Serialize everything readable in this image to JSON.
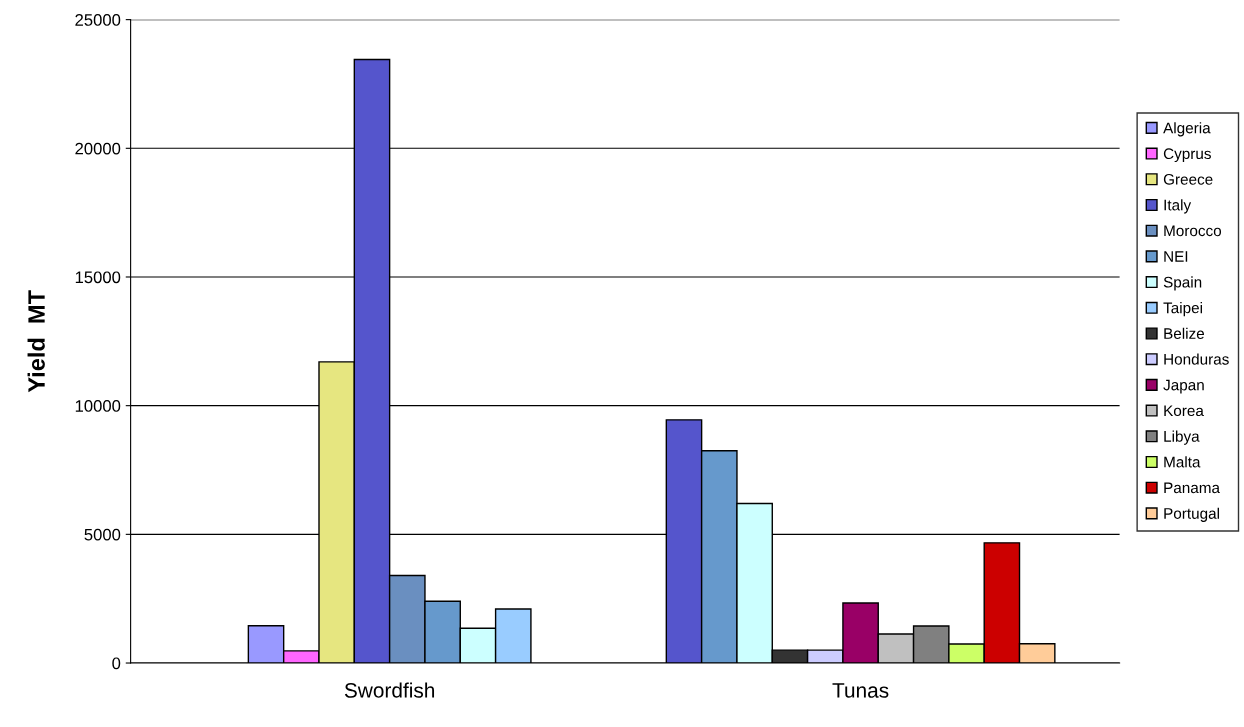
{
  "chart_data": {
    "type": "bar",
    "ylabel": "Yield  MT",
    "categories": [
      "Swordfish",
      "Tunas"
    ],
    "ylim": [
      0,
      25000
    ],
    "yticks": [
      0,
      5000,
      10000,
      15000,
      20000,
      25000
    ],
    "grid": "y",
    "legend": "right",
    "series": [
      {
        "name": "Algeria",
        "color": "#9999ff",
        "values": [
          1450,
          null
        ]
      },
      {
        "name": "Cyprus",
        "color": "#ff66ff",
        "values": [
          470,
          null
        ]
      },
      {
        "name": "Greece",
        "color": "#e6e680",
        "values": [
          11700,
          null
        ]
      },
      {
        "name": "Italy",
        "color": "#5555cc",
        "values": [
          23450,
          9450
        ]
      },
      {
        "name": "Morocco",
        "color": "#6a8fc0",
        "values": [
          3400,
          null
        ]
      },
      {
        "name": "NEI",
        "color": "#6699cc",
        "values": [
          2400,
          8250
        ]
      },
      {
        "name": "Spain",
        "color": "#ccffff",
        "values": [
          1350,
          6200
        ]
      },
      {
        "name": "Taipei",
        "color": "#99ccff",
        "values": [
          2100,
          null
        ]
      },
      {
        "name": "Belize",
        "color": "#333333",
        "values": [
          null,
          500
        ]
      },
      {
        "name": "Honduras",
        "color": "#ccccff",
        "values": [
          null,
          500
        ]
      },
      {
        "name": "Japan",
        "color": "#990066",
        "values": [
          null,
          2330
        ]
      },
      {
        "name": "Korea",
        "color": "#c0c0c0",
        "values": [
          null,
          1130
        ]
      },
      {
        "name": "Libya",
        "color": "#808080",
        "values": [
          null,
          1440
        ]
      },
      {
        "name": "Malta",
        "color": "#ccff66",
        "values": [
          null,
          740
        ]
      },
      {
        "name": "Panama",
        "color": "#cc0000",
        "values": [
          null,
          4670
        ]
      },
      {
        "name": "Portugal",
        "color": "#ffcc99",
        "values": [
          null,
          750
        ]
      }
    ]
  }
}
